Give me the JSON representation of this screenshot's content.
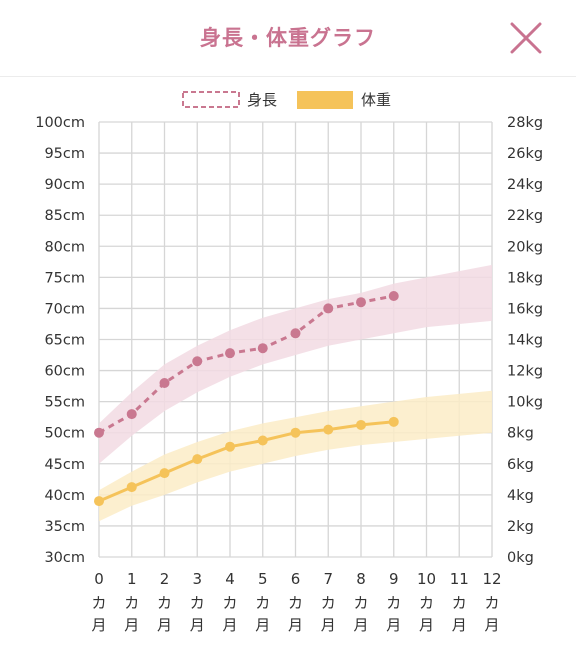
{
  "header": {
    "title": "身長・体重グラフ"
  },
  "chart_data": {
    "type": "line",
    "legend": [
      {
        "name": "身長",
        "style": "dashed",
        "color": "#c97890"
      },
      {
        "name": "体重",
        "style": "solid",
        "color": "#f5c35a"
      }
    ],
    "legend_placement": "top-center",
    "grid": true,
    "x": [
      0,
      1,
      2,
      3,
      4,
      5,
      6,
      7,
      8,
      9,
      10,
      11,
      12
    ],
    "x_tick_labels": [
      "0",
      "1",
      "2",
      "3",
      "4",
      "5",
      "6",
      "7",
      "8",
      "9",
      "10",
      "11",
      "12"
    ],
    "x_unit_labels": [
      "カ",
      "月"
    ],
    "y_left": {
      "min": 30,
      "max": 100,
      "step": 5,
      "unit": "cm",
      "tick_labels": [
        "100cm",
        "95cm",
        "90cm",
        "85cm",
        "80cm",
        "75cm",
        "70cm",
        "65cm",
        "60cm",
        "55cm",
        "50cm",
        "45cm",
        "40cm",
        "35cm",
        "30cm"
      ]
    },
    "y_right": {
      "min": 0,
      "max": 28,
      "step": 2,
      "unit": "kg",
      "tick_labels": [
        "28kg",
        "26kg",
        "24kg",
        "22kg",
        "20kg",
        "18kg",
        "16kg",
        "14kg",
        "12kg",
        "10kg",
        "8kg",
        "6kg",
        "4kg",
        "2kg",
        "0kg"
      ]
    },
    "series": [
      {
        "name": "身長",
        "axis": "left",
        "color": "#c97890",
        "x": [
          0,
          1,
          2,
          3,
          4,
          5,
          6,
          7,
          8,
          9
        ],
        "values": [
          50.0,
          53.0,
          58.0,
          61.5,
          62.8,
          63.6,
          66.0,
          70.0,
          71.0,
          72.0
        ]
      },
      {
        "name": "体重",
        "axis": "right",
        "color": "#f5c35a",
        "x": [
          0,
          1,
          2,
          3,
          4,
          5,
          6,
          7,
          8,
          9
        ],
        "values": [
          3.6,
          4.5,
          5.4,
          6.3,
          7.1,
          7.5,
          8.0,
          8.2,
          8.5,
          8.7
        ]
      }
    ],
    "bands": [
      {
        "axis": "left",
        "color": "#f2dbe3",
        "x": [
          0,
          1,
          2,
          3,
          4,
          5,
          6,
          7,
          8,
          9,
          10,
          11,
          12
        ],
        "lower": [
          45.0,
          49.5,
          53.5,
          56.5,
          59.0,
          61.0,
          62.5,
          64.0,
          65.0,
          66.0,
          67.0,
          67.5,
          68.0
        ],
        "upper": [
          51.5,
          56.5,
          61.0,
          64.0,
          66.5,
          68.5,
          70.0,
          71.5,
          72.5,
          74.0,
          75.0,
          76.0,
          77.0
        ]
      },
      {
        "axis": "right",
        "color": "#fbecc7",
        "x": [
          0,
          1,
          2,
          3,
          4,
          5,
          6,
          7,
          8,
          9,
          10,
          11,
          12
        ],
        "lower": [
          2.3,
          3.3,
          4.0,
          4.8,
          5.5,
          6.0,
          6.5,
          6.9,
          7.2,
          7.4,
          7.6,
          7.8,
          8.0
        ],
        "upper": [
          4.3,
          5.5,
          6.6,
          7.4,
          8.1,
          8.6,
          9.0,
          9.4,
          9.7,
          10.0,
          10.3,
          10.5,
          10.7
        ]
      }
    ]
  }
}
